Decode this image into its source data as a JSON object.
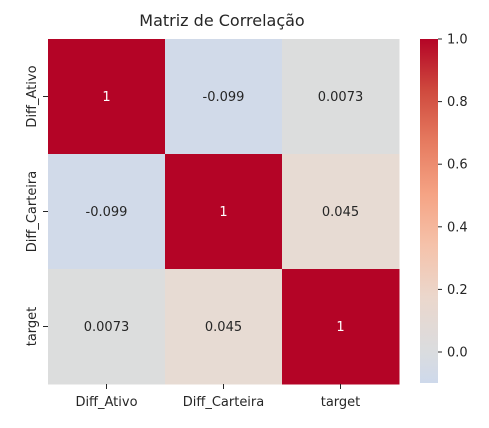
{
  "chart_data": {
    "type": "heatmap",
    "title": "Matriz de Correlação",
    "xlabel": "",
    "ylabel": "",
    "x_categories": [
      "Diff_Ativo",
      "Diff_Carteira",
      "target"
    ],
    "y_categories": [
      "Diff_Ativo",
      "Diff_Carteira",
      "target"
    ],
    "values": [
      [
        1,
        -0.099,
        0.0073
      ],
      [
        -0.099,
        1,
        0.045
      ],
      [
        0.0073,
        0.045,
        1
      ]
    ],
    "value_labels": [
      [
        "1",
        "-0.099",
        "0.0073"
      ],
      [
        "-0.099",
        "1",
        "0.045"
      ],
      [
        "0.0073",
        "0.045",
        "1"
      ]
    ],
    "colormap": "coolwarm",
    "vmin": -0.099,
    "vmax": 1.0,
    "colorbar": {
      "ticks": [
        0.0,
        0.2,
        0.4,
        0.6,
        0.8,
        1.0
      ],
      "tick_labels": [
        "0.0",
        "0.2",
        "0.4",
        "0.6",
        "0.8",
        "1.0"
      ],
      "position": "right"
    },
    "cell_colors": [
      [
        "#b40426",
        "#d1dae9",
        "#dcdddd"
      ],
      [
        "#d1dae9",
        "#b40426",
        "#e7dbd3"
      ],
      [
        "#dcdddd",
        "#e7dbd3",
        "#b40426"
      ]
    ],
    "annotation_colors": [
      [
        "#ffffff",
        "#262626",
        "#262626"
      ],
      [
        "#262626",
        "#ffffff",
        "#262626"
      ],
      [
        "#262626",
        "#262626",
        "#ffffff"
      ]
    ],
    "grid": false
  }
}
